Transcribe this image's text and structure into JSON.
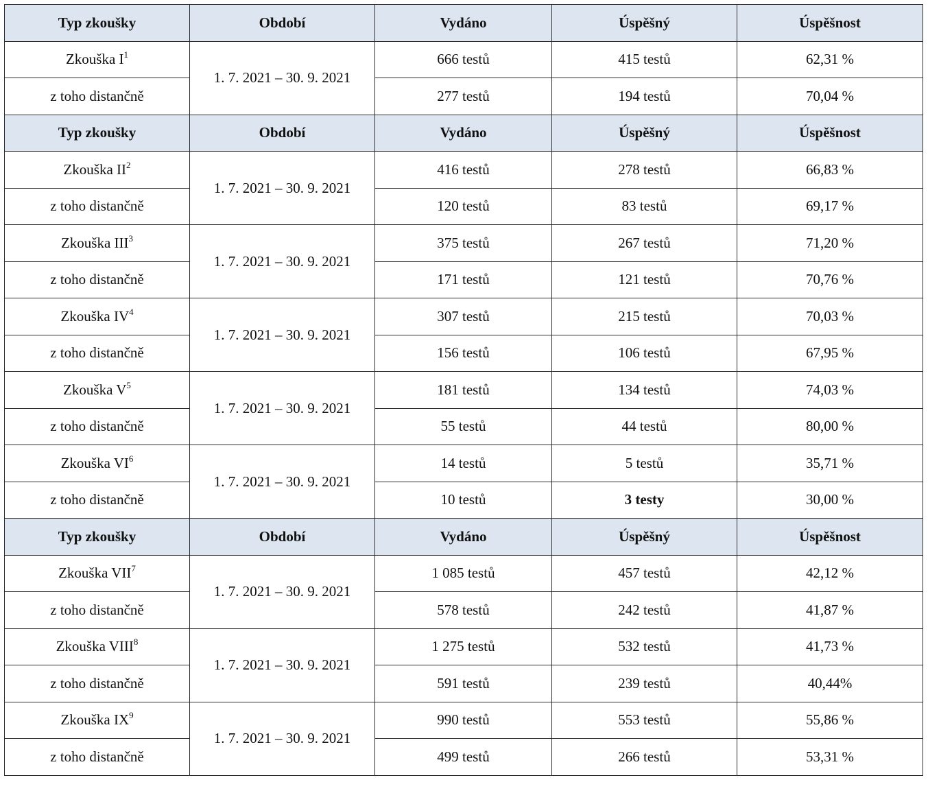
{
  "header": {
    "type": "Typ zkoušky",
    "period": "Období",
    "issued": "Vydáno",
    "passed": "Úspěšný",
    "rate": "Úspěšnost"
  },
  "sections": [
    {
      "groups": [
        {
          "name": "Zkouška I",
          "sup": "1",
          "period": "1. 7. 2021 – 30. 9. 2021",
          "rows": [
            {
              "label": "",
              "issued": "666 testů",
              "passed": "415 testů",
              "rate": "62,31 %"
            },
            {
              "label": "z toho distančně",
              "issued": "277 testů",
              "passed": "194 testů",
              "rate": "70,04 %"
            }
          ]
        }
      ]
    },
    {
      "groups": [
        {
          "name": "Zkouška II",
          "sup": "2",
          "period": "1. 7. 2021 – 30. 9. 2021",
          "rows": [
            {
              "label": "",
              "issued": "416 testů",
              "passed": "278 testů",
              "rate": "66,83 %"
            },
            {
              "label": "z toho distančně",
              "issued": "120 testů",
              "passed": "83 testů",
              "rate": "69,17 %"
            }
          ]
        },
        {
          "name": "Zkouška III",
          "sup": "3",
          "period": "1. 7. 2021 – 30. 9. 2021",
          "rows": [
            {
              "label": "",
              "issued": "375 testů",
              "passed": "267 testů",
              "rate": "71,20 %"
            },
            {
              "label": "z toho distančně",
              "issued": "171 testů",
              "passed": "121 testů",
              "rate": "70,76 %"
            }
          ]
        },
        {
          "name": "Zkouška IV",
          "sup": "4",
          "period": "1. 7. 2021 – 30. 9. 2021",
          "rows": [
            {
              "label": "",
              "issued": "307 testů",
              "passed": "215 testů",
              "rate": "70,03 %"
            },
            {
              "label": "z toho distančně",
              "issued": "156 testů",
              "passed": "106 testů",
              "rate": "67,95 %"
            }
          ]
        },
        {
          "name": "Zkouška V",
          "sup": "5",
          "period": "1. 7. 2021 – 30. 9. 2021",
          "rows": [
            {
              "label": "",
              "issued": "181 testů",
              "passed": "134 testů",
              "rate": "74,03 %"
            },
            {
              "label": "z toho distančně",
              "issued": "55 testů",
              "passed": "44 testů",
              "rate": "80,00 %"
            }
          ]
        },
        {
          "name": "Zkouška VI",
          "sup": "6",
          "period": "1. 7. 2021 – 30. 9. 2021",
          "rows": [
            {
              "label": "",
              "issued": "14 testů",
              "passed": "5 testů",
              "rate": "35,71 %"
            },
            {
              "label": "z toho distančně",
              "issued": "10 testů",
              "passed": "3 testy",
              "passed_bold": true,
              "rate": "30,00 %"
            }
          ]
        }
      ]
    },
    {
      "groups": [
        {
          "name": "Zkouška VII",
          "sup": "7",
          "period": "1. 7. 2021 – 30. 9. 2021",
          "rows": [
            {
              "label": "",
              "issued": "1 085 testů",
              "passed": "457 testů",
              "rate": "42,12 %"
            },
            {
              "label": "z toho distančně",
              "issued": "578 testů",
              "passed": "242 testů",
              "rate": "41,87 %"
            }
          ]
        },
        {
          "name": "Zkouška VIII",
          "sup": "8",
          "period": "1. 7. 2021 – 30. 9. 2021",
          "rows": [
            {
              "label": "",
              "issued": "1 275 testů",
              "passed": "532 testů",
              "rate": "41,73 %"
            },
            {
              "label": "z toho distančně",
              "issued": "591 testů",
              "passed": "239 testů",
              "rate": "40,44%"
            }
          ]
        },
        {
          "name": "Zkouška IX",
          "sup": "9",
          "period": "1. 7. 2021 – 30. 9. 2021",
          "rows": [
            {
              "label": "",
              "issued": "990 testů",
              "passed": "553 testů",
              "rate": "55,86 %"
            },
            {
              "label": "z toho distančně",
              "issued": "499 testů",
              "passed": "266 testů",
              "rate": "53,31 %"
            }
          ]
        }
      ]
    }
  ]
}
